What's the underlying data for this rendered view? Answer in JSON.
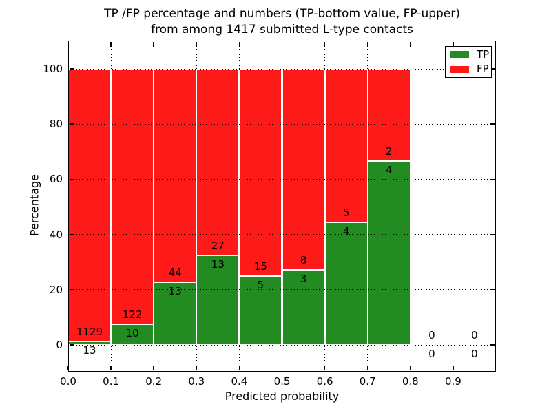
{
  "title": {
    "line1": "TP /FP percentage and numbers (TP-bottom value, FP-upper)",
    "line2": "from among 1417 submitted L-type contacts"
  },
  "chart_data": {
    "type": "bar",
    "stacked": true,
    "orientation": "vertical",
    "title": "TP /FP percentage and numbers (TP-bottom value, FP-upper) from among 1417 submitted L-type contacts",
    "xlabel": "Predicted probability",
    "ylabel": "Percentage",
    "xlim": [
      0.0,
      1.0
    ],
    "ylim": [
      -10,
      110
    ],
    "x_tick_labels": [
      "0.0",
      "0.1",
      "0.2",
      "0.3",
      "0.4",
      "0.5",
      "0.6",
      "0.7",
      "0.8",
      "0.9"
    ],
    "y_tick_values": [
      0,
      20,
      40,
      60,
      80,
      100
    ],
    "y_tick_labels": [
      "0",
      "20",
      "40",
      "60",
      "80",
      "100"
    ],
    "grid": {
      "visible": true,
      "style": "dotted",
      "color": "#000000"
    },
    "annotation_rule": "FP count printed above TP/FP boundary, TP count printed below boundary",
    "bins": [
      {
        "range": [
          0.0,
          0.1
        ],
        "tp": 13,
        "fp": 1129,
        "tp_pct": 1.14,
        "fp_pct": 98.86
      },
      {
        "range": [
          0.1,
          0.2
        ],
        "tp": 10,
        "fp": 122,
        "tp_pct": 7.58,
        "fp_pct": 92.42
      },
      {
        "range": [
          0.2,
          0.3
        ],
        "tp": 13,
        "fp": 44,
        "tp_pct": 22.81,
        "fp_pct": 77.19
      },
      {
        "range": [
          0.3,
          0.4
        ],
        "tp": 13,
        "fp": 27,
        "tp_pct": 32.5,
        "fp_pct": 67.5
      },
      {
        "range": [
          0.4,
          0.5
        ],
        "tp": 5,
        "fp": 15,
        "tp_pct": 25.0,
        "fp_pct": 75.0
      },
      {
        "range": [
          0.5,
          0.6
        ],
        "tp": 3,
        "fp": 8,
        "tp_pct": 27.27,
        "fp_pct": 72.73
      },
      {
        "range": [
          0.6,
          0.7
        ],
        "tp": 4,
        "fp": 5,
        "tp_pct": 44.44,
        "fp_pct": 55.56
      },
      {
        "range": [
          0.7,
          0.8
        ],
        "tp": 4,
        "fp": 2,
        "tp_pct": 66.67,
        "fp_pct": 33.33
      },
      {
        "range": [
          0.8,
          0.9
        ],
        "tp": 0,
        "fp": 0,
        "tp_pct": 0,
        "fp_pct": 0
      },
      {
        "range": [
          0.9,
          1.0
        ],
        "tp": 0,
        "fp": 0,
        "tp_pct": 0,
        "fp_pct": 0
      }
    ],
    "series": [
      {
        "name": "TP",
        "color": "#228B22"
      },
      {
        "name": "FP",
        "color": "#FF1A1A"
      }
    ],
    "colors": {
      "tp": "#228B22",
      "fp": "#FF1A1A",
      "bar_edge": "#FFFFFF",
      "grid": "#000000"
    },
    "legend": {
      "position": "upper-right",
      "entries": [
        {
          "label": "TP",
          "color": "#228B22"
        },
        {
          "label": "FP",
          "color": "#FF1A1A"
        }
      ]
    }
  }
}
